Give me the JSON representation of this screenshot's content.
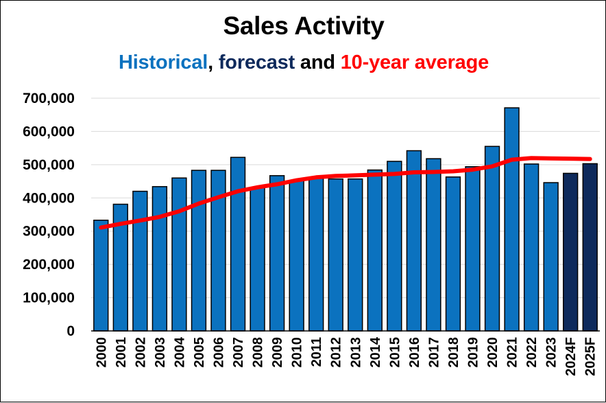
{
  "chart_data": {
    "type": "bar",
    "title": "Sales Activity",
    "subtitle": {
      "part1": "Historical",
      "sep1": ", ",
      "part2": "forecast",
      "sep2": " and ",
      "part3": "10-year average"
    },
    "colors": {
      "historical": "#0B72BF",
      "forecast": "#0E2A5C",
      "average": "#FF0000",
      "subtitle_sep": "#000000"
    },
    "categories": [
      "2000",
      "2001",
      "2002",
      "2003",
      "2004",
      "2005",
      "2006",
      "2007",
      "2008",
      "2009",
      "2010",
      "2011",
      "2012",
      "2013",
      "2014",
      "2015",
      "2016",
      "2017",
      "2018",
      "2019",
      "2020",
      "2021",
      "2022",
      "2023",
      "2024F",
      "2025F"
    ],
    "series": [
      {
        "values": [
          333000,
          381000,
          420000,
          434000,
          460000,
          483000,
          483000,
          522000,
          432000,
          467000,
          452000,
          460000,
          457000,
          457000,
          484000,
          510000,
          542000,
          518000,
          463000,
          494000,
          555000,
          671000,
          502000,
          446000,
          474000,
          503000
        ]
      },
      {
        "type": "line",
        "values": [
          311000,
          322000,
          332000,
          343000,
          360000,
          383000,
          402000,
          420000,
          432000,
          441000,
          453000,
          462000,
          466000,
          468000,
          470000,
          472000,
          477000,
          478000,
          480000,
          485000,
          495000,
          515000,
          520000,
          519000,
          518000,
          517000
        ]
      }
    ],
    "forecast_categories": [
      "2024F",
      "2025F"
    ],
    "yticks": [
      "0",
      "100,000",
      "200,000",
      "300,000",
      "400,000",
      "500,000",
      "600,000",
      "700,000"
    ],
    "ylim": [
      0,
      700000
    ],
    "grid": true,
    "xlabel": "",
    "ylabel": ""
  }
}
